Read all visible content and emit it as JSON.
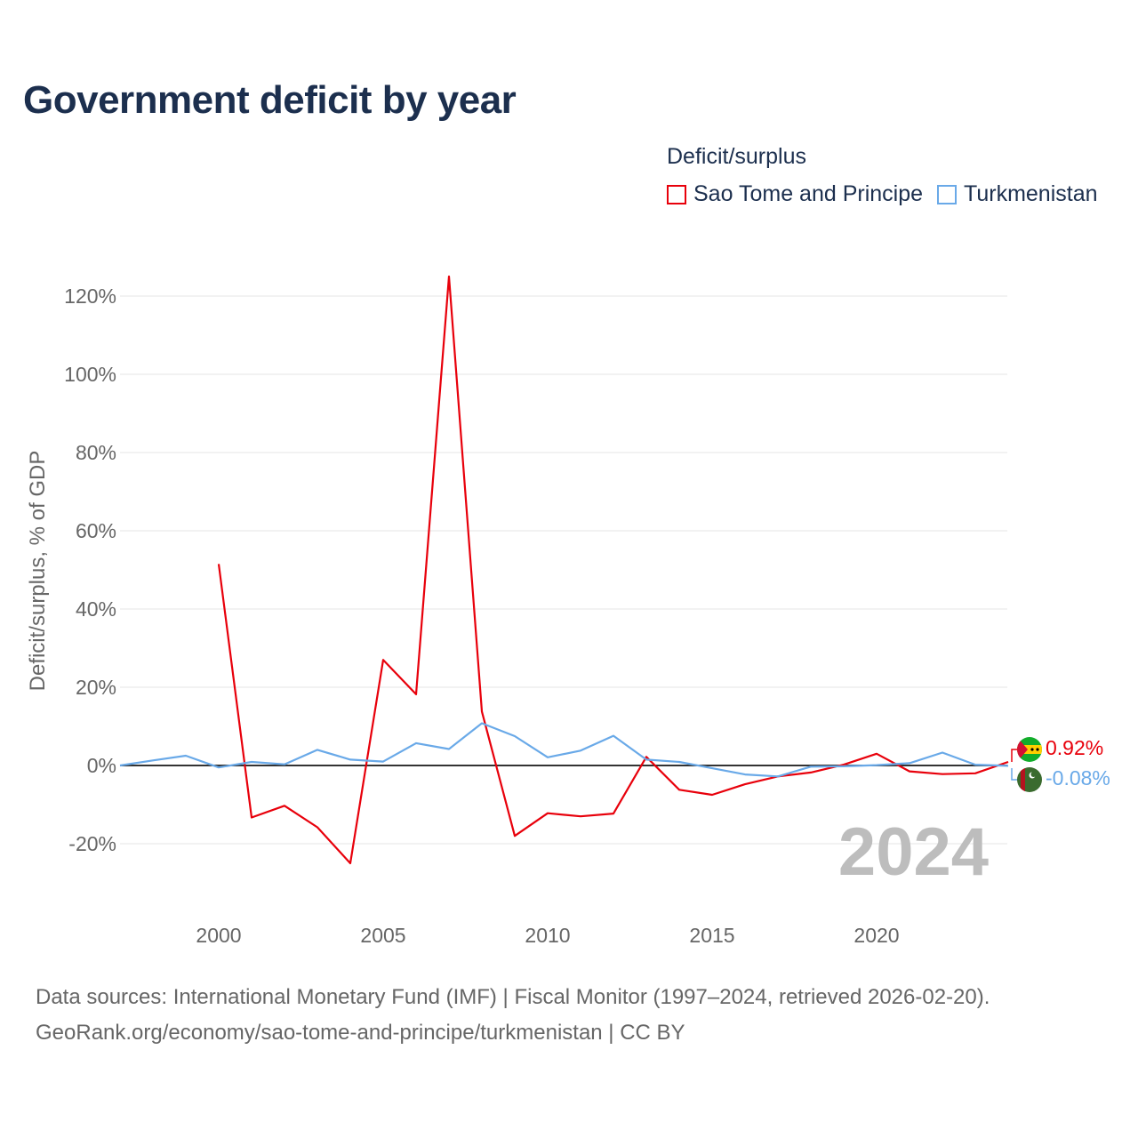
{
  "header": {
    "title": "Government deficit by year"
  },
  "legend": {
    "title": "Deficit/surplus",
    "items": [
      {
        "label": "Sao Tome and Principe",
        "color": "#e8000b"
      },
      {
        "label": "Turkmenistan",
        "color": "#69a9e8"
      }
    ]
  },
  "footer": {
    "line1": "Data sources: International Monetary Fund (IMF) | Fiscal Monitor (1997–2024, retrieved 2026-02-20).",
    "line2": "GeoRank.org/economy/sao-tome-and-principe/turkmenistan | CC BY"
  },
  "chart_data": {
    "type": "line",
    "title": "Government deficit by year",
    "xlabel": "",
    "ylabel": "Deficit/surplus, % of GDP",
    "current_year_label": "2024",
    "xlim": [
      1997,
      2024
    ],
    "ylim": [
      -30,
      130
    ],
    "x_ticks": [
      2000,
      2005,
      2010,
      2015,
      2020
    ],
    "y_ticks": [
      -20,
      0,
      20,
      40,
      60,
      80,
      100,
      120
    ],
    "y_tick_labels": [
      "-20%",
      "0%",
      "20%",
      "40%",
      "60%",
      "80%",
      "100%",
      "120%"
    ],
    "series": [
      {
        "name": "Sao Tome and Principe",
        "color": "#e8000b",
        "end_label": "0.92%",
        "flag": "Sao Tome and Principe flag",
        "points": [
          [
            2000,
            51.5
          ],
          [
            2001,
            -13.3
          ],
          [
            2002,
            -10.3
          ],
          [
            2003,
            -15.8
          ],
          [
            2004,
            -25.0
          ],
          [
            2005,
            27.0
          ],
          [
            2006,
            18.2
          ],
          [
            2007,
            125.0
          ],
          [
            2008,
            13.8
          ],
          [
            2009,
            -18.0
          ],
          [
            2010,
            -12.2
          ],
          [
            2011,
            -13.0
          ],
          [
            2012,
            -12.3
          ],
          [
            2013,
            2.2
          ],
          [
            2014,
            -6.2
          ],
          [
            2015,
            -7.5
          ],
          [
            2016,
            -4.8
          ],
          [
            2017,
            -2.8
          ],
          [
            2018,
            -1.8
          ],
          [
            2019,
            0.2
          ],
          [
            2020,
            3.0
          ],
          [
            2021,
            -1.5
          ],
          [
            2022,
            -2.2
          ],
          [
            2023,
            -2.0
          ],
          [
            2024,
            0.92
          ]
        ]
      },
      {
        "name": "Turkmenistan",
        "color": "#69a9e8",
        "end_label": "-0.08%",
        "flag": "Turkmenistan flag",
        "points": [
          [
            1997,
            0.0
          ],
          [
            1998,
            1.3
          ],
          [
            1999,
            2.5
          ],
          [
            2000,
            -0.5
          ],
          [
            2001,
            0.9
          ],
          [
            2002,
            0.3
          ],
          [
            2003,
            4.0
          ],
          [
            2004,
            1.5
          ],
          [
            2005,
            1.0
          ],
          [
            2006,
            5.7
          ],
          [
            2007,
            4.2
          ],
          [
            2008,
            10.8
          ],
          [
            2009,
            7.5
          ],
          [
            2010,
            2.1
          ],
          [
            2011,
            3.8
          ],
          [
            2012,
            7.6
          ],
          [
            2013,
            1.5
          ],
          [
            2014,
            0.9
          ],
          [
            2015,
            -0.7
          ],
          [
            2016,
            -2.3
          ],
          [
            2017,
            -2.8
          ],
          [
            2018,
            -0.3
          ],
          [
            2019,
            -0.2
          ],
          [
            2020,
            0.1
          ],
          [
            2021,
            0.6
          ],
          [
            2022,
            3.3
          ],
          [
            2023,
            0.2
          ],
          [
            2024,
            -0.08
          ]
        ]
      }
    ]
  }
}
